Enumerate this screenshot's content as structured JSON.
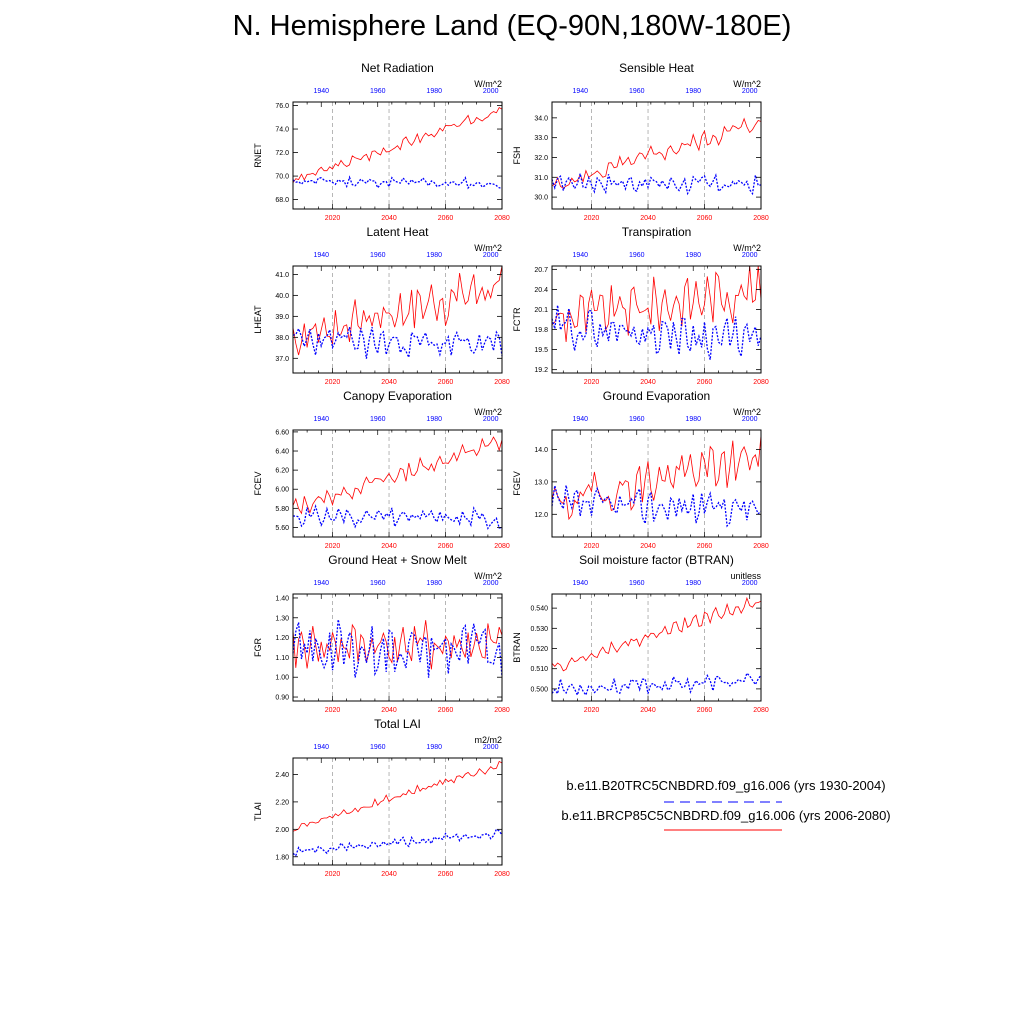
{
  "figure": {
    "title": "N. Hemisphere Land (EQ-90N,180W-180E)",
    "legend": {
      "hist_label": "b.e11.B20TRC5CNBDRD.f09_g16.006 (yrs 1930-2004)",
      "future_label": "b.e11.BRCP85C5CNBDRD.f09_g16.006 (yrs 2006-2080)",
      "hist_color": "#0000ff",
      "future_color": "#ff0000",
      "hist_line_style": "dashed",
      "future_line_style": "solid"
    }
  },
  "chart_data": [
    {
      "type": "line",
      "title": "Net Radiation",
      "ylabel": "RNET",
      "units": "W/m^2",
      "ylim": [
        67.2,
        76.3
      ],
      "yticks": [
        68.0,
        70.0,
        72.0,
        74.0,
        76.0
      ],
      "ytick_labels": [
        "68.0",
        "70.0",
        "72.0",
        "74.0",
        "76.0"
      ],
      "x_bottom": {
        "range": [
          2006,
          2080
        ],
        "ticks": [
          2020,
          2040,
          2060,
          2080
        ],
        "labels": [
          "2020",
          "2040",
          "2060",
          "2080"
        ]
      },
      "x_top": {
        "range": [
          1930,
          2004
        ],
        "ticks": [
          1940,
          1960,
          1980,
          2000
        ],
        "labels": [
          "1940",
          "1960",
          "1980",
          "2000"
        ]
      },
      "grid": "vertical-dashed",
      "series": [
        {
          "role": "future",
          "start": 2006,
          "end": 2080,
          "base": 69.6,
          "trend": 6.0,
          "amp": 0.35,
          "seed": 3
        },
        {
          "role": "hist",
          "start": 1930,
          "end": 2004,
          "base": 69.6,
          "trend": -0.3,
          "amp": 0.35,
          "seed": 11
        }
      ]
    },
    {
      "type": "line",
      "title": "Sensible Heat",
      "ylabel": "FSH",
      "units": "W/m^2",
      "ylim": [
        29.4,
        34.8
      ],
      "yticks": [
        30.0,
        31.0,
        32.0,
        33.0,
        34.0
      ],
      "ytick_labels": [
        "30.0",
        "31.0",
        "32.0",
        "33.0",
        "34.0"
      ],
      "x_bottom": {
        "range": [
          2006,
          2080
        ],
        "ticks": [
          2020,
          2040,
          2060,
          2080
        ],
        "labels": [
          "2020",
          "2040",
          "2060",
          "2080"
        ]
      },
      "x_top": {
        "range": [
          1930,
          2004
        ],
        "ticks": [
          1940,
          1960,
          1980,
          2000
        ],
        "labels": [
          "1940",
          "1960",
          "1980",
          "2000"
        ]
      },
      "grid": "vertical-dashed",
      "series": [
        {
          "role": "future",
          "start": 2006,
          "end": 2080,
          "base": 30.5,
          "trend": 3.3,
          "amp": 0.35,
          "seed": 5
        },
        {
          "role": "hist",
          "start": 1930,
          "end": 2004,
          "base": 30.8,
          "trend": -0.2,
          "amp": 0.35,
          "seed": 17
        }
      ]
    },
    {
      "type": "line",
      "title": "Latent Heat",
      "ylabel": "LHEAT",
      "units": "W/m^2",
      "ylim": [
        36.3,
        41.4
      ],
      "yticks": [
        37.0,
        38.0,
        39.0,
        40.0,
        41.0
      ],
      "ytick_labels": [
        "37.0",
        "38.0",
        "39.0",
        "40.0",
        "41.0"
      ],
      "x_bottom": {
        "range": [
          2006,
          2080
        ],
        "ticks": [
          2020,
          2040,
          2060,
          2080
        ],
        "labels": [
          "2020",
          "2040",
          "2060",
          "2080"
        ]
      },
      "x_top": {
        "range": [
          1930,
          2004
        ],
        "ticks": [
          1940,
          1960,
          1980,
          2000
        ],
        "labels": [
          "1940",
          "1960",
          "1980",
          "2000"
        ]
      },
      "grid": "vertical-dashed",
      "series": [
        {
          "role": "future",
          "start": 2006,
          "end": 2080,
          "base": 38.0,
          "trend": 2.5,
          "amp": 0.9,
          "seed": 7
        },
        {
          "role": "hist",
          "start": 1930,
          "end": 2004,
          "base": 37.9,
          "trend": -0.3,
          "amp": 0.55,
          "seed": 23
        }
      ]
    },
    {
      "type": "line",
      "title": "Transpiration",
      "ylabel": "FCTR",
      "units": "W/m^2",
      "ylim": [
        19.15,
        20.75
      ],
      "yticks": [
        19.2,
        19.5,
        19.8,
        20.1,
        20.4,
        20.7
      ],
      "ytick_labels": [
        "19.2",
        "19.5",
        "19.8",
        "20.1",
        "20.4",
        "20.7"
      ],
      "x_bottom": {
        "range": [
          2006,
          2080
        ],
        "ticks": [
          2020,
          2040,
          2060,
          2080
        ],
        "labels": [
          "2020",
          "2040",
          "2060",
          "2080"
        ]
      },
      "x_top": {
        "range": [
          1930,
          2004
        ],
        "ticks": [
          1940,
          1960,
          1980,
          2000
        ],
        "labels": [
          "1940",
          "1960",
          "1980",
          "2000"
        ]
      },
      "grid": "vertical-dashed",
      "series": [
        {
          "role": "future",
          "start": 2006,
          "end": 2080,
          "base": 19.95,
          "trend": 0.45,
          "amp": 0.28,
          "seed": 9
        },
        {
          "role": "hist",
          "start": 1930,
          "end": 2004,
          "base": 19.85,
          "trend": -0.2,
          "amp": 0.22,
          "seed": 29
        }
      ]
    },
    {
      "type": "line",
      "title": "Canopy Evaporation",
      "ylabel": "FCEV",
      "units": "W/m^2",
      "ylim": [
        5.5,
        6.62
      ],
      "yticks": [
        5.6,
        5.8,
        6.0,
        6.2,
        6.4,
        6.6
      ],
      "ytick_labels": [
        "5.60",
        "5.80",
        "6.00",
        "6.20",
        "6.40",
        "6.60"
      ],
      "x_bottom": {
        "range": [
          2006,
          2080
        ],
        "ticks": [
          2020,
          2040,
          2060,
          2080
        ],
        "labels": [
          "2020",
          "2040",
          "2060",
          "2080"
        ]
      },
      "x_top": {
        "range": [
          1930,
          2004
        ],
        "ticks": [
          1940,
          1960,
          1980,
          2000
        ],
        "labels": [
          "1940",
          "1960",
          "1980",
          "2000"
        ]
      },
      "grid": "vertical-dashed",
      "series": [
        {
          "role": "future",
          "start": 2006,
          "end": 2080,
          "base": 5.8,
          "trend": 0.7,
          "amp": 0.07,
          "seed": 13
        },
        {
          "role": "hist",
          "start": 1930,
          "end": 2004,
          "base": 5.72,
          "trend": -0.03,
          "amp": 0.08,
          "seed": 31
        }
      ]
    },
    {
      "type": "line",
      "title": "Ground Evaporation",
      "ylabel": "FGEV",
      "units": "W/m^2",
      "ylim": [
        11.3,
        14.6
      ],
      "yticks": [
        12.0,
        13.0,
        14.0
      ],
      "ytick_labels": [
        "12.0",
        "13.0",
        "14.0"
      ],
      "x_bottom": {
        "range": [
          2006,
          2080
        ],
        "ticks": [
          2020,
          2040,
          2060,
          2080
        ],
        "labels": [
          "2020",
          "2040",
          "2060",
          "2080"
        ]
      },
      "x_top": {
        "range": [
          1930,
          2004
        ],
        "ticks": [
          1940,
          1960,
          1980,
          2000
        ],
        "labels": [
          "1940",
          "1960",
          "1980",
          "2000"
        ]
      },
      "grid": "vertical-dashed",
      "series": [
        {
          "role": "future",
          "start": 2006,
          "end": 2080,
          "base": 12.3,
          "trend": 1.5,
          "amp": 0.55,
          "seed": 19
        },
        {
          "role": "hist",
          "start": 1930,
          "end": 2004,
          "base": 12.3,
          "trend": -0.1,
          "amp": 0.4,
          "seed": 37
        }
      ]
    },
    {
      "type": "line",
      "title": "Ground Heat + Snow Melt",
      "ylabel": "FGR",
      "units": "W/m^2",
      "ylim": [
        0.88,
        1.42
      ],
      "yticks": [
        0.9,
        1.0,
        1.1,
        1.2,
        1.3,
        1.4
      ],
      "ytick_labels": [
        "0.90",
        "1.00",
        "1.10",
        "1.20",
        "1.30",
        "1.40"
      ],
      "x_bottom": {
        "range": [
          2006,
          2080
        ],
        "ticks": [
          2020,
          2040,
          2060,
          2080
        ],
        "labels": [
          "2020",
          "2040",
          "2060",
          "2080"
        ]
      },
      "x_top": {
        "range": [
          1930,
          2004
        ],
        "ticks": [
          1940,
          1960,
          1980,
          2000
        ],
        "labels": [
          "1940",
          "1960",
          "1980",
          "2000"
        ]
      },
      "grid": "vertical-dashed",
      "series": [
        {
          "role": "future",
          "start": 2006,
          "end": 2080,
          "base": 1.16,
          "trend": 0.0,
          "amp": 0.09,
          "seed": 41
        },
        {
          "role": "hist",
          "start": 1930,
          "end": 2004,
          "base": 1.14,
          "trend": 0.0,
          "amp": 0.1,
          "seed": 43
        }
      ]
    },
    {
      "type": "line",
      "title": "Soil moisture factor (BTRAN)",
      "ylabel": "BTRAN",
      "units": "unitless",
      "ylim": [
        0.494,
        0.547
      ],
      "yticks": [
        0.5,
        0.51,
        0.52,
        0.53,
        0.54
      ],
      "ytick_labels": [
        "0.500",
        "0.510",
        "0.520",
        "0.530",
        "0.540"
      ],
      "x_bottom": {
        "range": [
          2006,
          2080
        ],
        "ticks": [
          2020,
          2040,
          2060,
          2080
        ],
        "labels": [
          "2020",
          "2040",
          "2060",
          "2080"
        ]
      },
      "x_top": {
        "range": [
          1930,
          2004
        ],
        "ticks": [
          1940,
          1960,
          1980,
          2000
        ],
        "labels": [
          "1940",
          "1960",
          "1980",
          "2000"
        ]
      },
      "grid": "vertical-dashed",
      "series": [
        {
          "role": "future",
          "start": 2006,
          "end": 2080,
          "base": 0.51,
          "trend": 0.034,
          "amp": 0.0025,
          "seed": 47
        },
        {
          "role": "hist",
          "start": 1930,
          "end": 2004,
          "base": 0.5,
          "trend": 0.004,
          "amp": 0.003,
          "seed": 53
        }
      ]
    },
    {
      "type": "line",
      "title": "Total LAI",
      "ylabel": "TLAI",
      "units": "m2/m2",
      "ylim": [
        1.74,
        2.52
      ],
      "yticks": [
        1.8,
        2.0,
        2.2,
        2.4
      ],
      "ytick_labels": [
        "1.80",
        "2.00",
        "2.20",
        "2.40"
      ],
      "x_bottom": {
        "range": [
          2006,
          2080
        ],
        "ticks": [
          2020,
          2040,
          2060,
          2080
        ],
        "labels": [
          "2020",
          "2040",
          "2060",
          "2080"
        ]
      },
      "x_top": {
        "range": [
          1930,
          2004
        ],
        "ticks": [
          1940,
          1960,
          1980,
          2000
        ],
        "labels": [
          "1940",
          "1960",
          "1980",
          "2000"
        ]
      },
      "grid": "vertical-dashed",
      "series": [
        {
          "role": "future",
          "start": 2006,
          "end": 2080,
          "base": 2.0,
          "trend": 0.48,
          "amp": 0.025,
          "seed": 59
        },
        {
          "role": "hist",
          "start": 1930,
          "end": 2004,
          "base": 1.83,
          "trend": 0.14,
          "amp": 0.025,
          "seed": 61
        }
      ]
    }
  ]
}
